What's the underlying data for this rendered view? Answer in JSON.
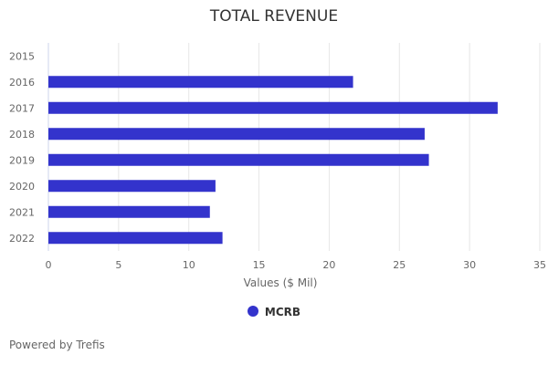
{
  "chart_data": {
    "type": "bar",
    "orientation": "horizontal",
    "title": "TOTAL REVENUE",
    "xlabel": "Values ($ Mil)",
    "ylabel": "",
    "categories": [
      "2015",
      "2016",
      "2017",
      "2018",
      "2019",
      "2020",
      "2021",
      "2022"
    ],
    "series": [
      {
        "name": "MCRB",
        "values": [
          null,
          21.7,
          32.0,
          26.8,
          27.1,
          11.9,
          11.5,
          12.4
        ],
        "color": "#3333cc"
      }
    ],
    "xlim": [
      0,
      35
    ],
    "xticks": [
      0,
      5,
      10,
      15,
      20,
      25,
      30,
      35
    ],
    "grid": true,
    "legend_position": "bottom-center"
  },
  "credit": "Powered by Trefis"
}
